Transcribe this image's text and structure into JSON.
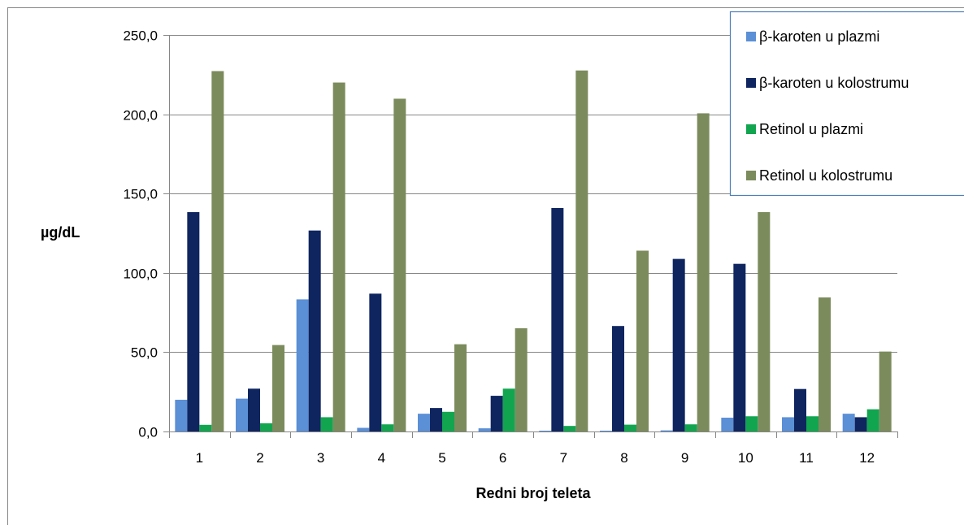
{
  "chart_data": {
    "type": "bar",
    "title": "",
    "xlabel": "Redni broj teleta",
    "ylabel": "µg/dL",
    "ylim": [
      0,
      250
    ],
    "yticks": [
      0,
      50,
      100,
      150,
      200,
      250
    ],
    "ytick_labels": [
      "0,0",
      "50,0",
      "100,0",
      "150,0",
      "200,0",
      "250,0"
    ],
    "grid": "horizontal",
    "legend_position": "top-right",
    "categories": [
      "1",
      "2",
      "3",
      "4",
      "5",
      "6",
      "7",
      "8",
      "9",
      "10",
      "11",
      "12"
    ],
    "series": [
      {
        "name": "β-karoten u plazmi",
        "color": "#5b8fd6",
        "values": [
          20.0,
          20.7,
          83.3,
          2.3,
          11.2,
          2.0,
          0.5,
          0.5,
          0.7,
          8.7,
          9.0,
          11.2
        ]
      },
      {
        "name": "β-karoten u kolostrumu",
        "color": "#0f2560",
        "values": [
          138.3,
          27.0,
          126.7,
          86.9,
          14.8,
          22.5,
          140.9,
          66.5,
          108.8,
          105.7,
          26.8,
          9.0
        ]
      },
      {
        "name": "Retinol u plazmi",
        "color": "#12a550",
        "values": [
          4.2,
          5.2,
          9.0,
          4.5,
          12.4,
          27.0,
          3.5,
          4.3,
          4.5,
          9.6,
          9.6,
          14.0
        ]
      },
      {
        "name": "Retinol u kolostrumu",
        "color": "#7b8b5c",
        "values": [
          227.2,
          54.5,
          220.0,
          209.8,
          55.0,
          65.1,
          227.6,
          114.0,
          200.6,
          138.3,
          84.5,
          50.4
        ]
      }
    ]
  }
}
